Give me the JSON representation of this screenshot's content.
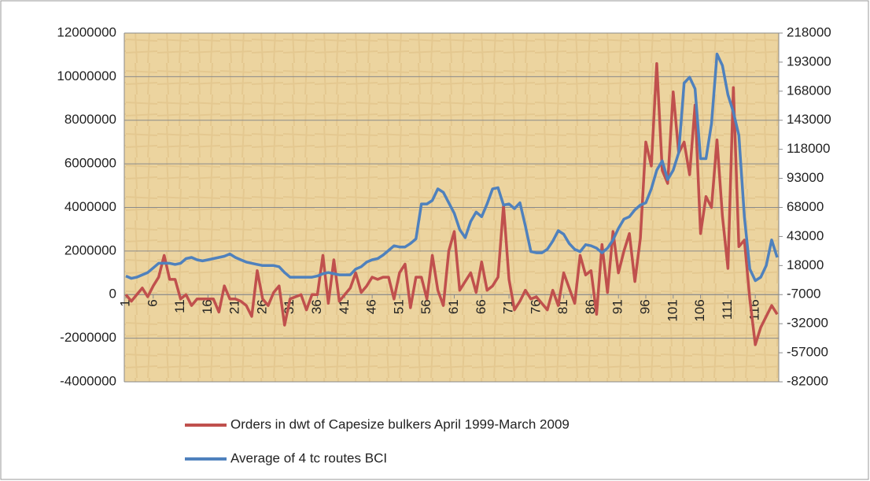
{
  "chart_data": {
    "type": "line",
    "categories": [
      1,
      null,
      null,
      null,
      null,
      6,
      null,
      null,
      null,
      null,
      11,
      null,
      null,
      null,
      null,
      16,
      null,
      null,
      null,
      null,
      21,
      null,
      null,
      null,
      null,
      26,
      null,
      null,
      null,
      null,
      31,
      null,
      null,
      null,
      null,
      36,
      null,
      null,
      null,
      null,
      41,
      null,
      null,
      null,
      null,
      46,
      null,
      null,
      null,
      null,
      51,
      null,
      null,
      null,
      null,
      56,
      null,
      null,
      null,
      null,
      61,
      null,
      null,
      null,
      null,
      66,
      null,
      null,
      null,
      null,
      71,
      null,
      null,
      null,
      null,
      76,
      null,
      null,
      null,
      null,
      81,
      null,
      null,
      null,
      null,
      86,
      null,
      null,
      null,
      null,
      91,
      null,
      null,
      null,
      null,
      96,
      null,
      null,
      null,
      null,
      101,
      null,
      null,
      null,
      null,
      106,
      null,
      null,
      null,
      null,
      111,
      null,
      null,
      null,
      null,
      116,
      null,
      null,
      null,
      null
    ],
    "series": [
      {
        "name": "Orders in dwt of Capesize bulkers April 1999-March 2009",
        "color": "#c0504d",
        "axis": "y",
        "values": [
          0,
          -300000,
          0,
          300000,
          -100000,
          400000,
          800000,
          1800000,
          700000,
          700000,
          -200000,
          0,
          -500000,
          -200000,
          -200000,
          -200000,
          -200000,
          -800000,
          400000,
          -200000,
          -200000,
          -300000,
          -500000,
          -1000000,
          1100000,
          -200000,
          -500000,
          100000,
          400000,
          -1400000,
          -200000,
          -100000,
          0,
          -700000,
          0,
          0,
          1800000,
          -400000,
          1600000,
          -300000,
          0,
          300000,
          1000000,
          100000,
          400000,
          800000,
          700000,
          800000,
          800000,
          -200000,
          1000000,
          1400000,
          -600000,
          800000,
          800000,
          -200000,
          1800000,
          200000,
          -500000,
          2000000,
          2900000,
          200000,
          600000,
          1000000,
          100000,
          1500000,
          200000,
          400000,
          800000,
          4100000,
          700000,
          -700000,
          -300000,
          200000,
          -200000,
          -100000,
          -400000,
          -700000,
          200000,
          -500000,
          1000000,
          300000,
          -400000,
          1800000,
          900000,
          1100000,
          -900000,
          2300000,
          100000,
          2900000,
          1000000,
          2000000,
          2800000,
          600000,
          2600000,
          7000000,
          5900000,
          10600000,
          5700000,
          5100000,
          9300000,
          6500000,
          7000000,
          5500000,
          8700000,
          2800000,
          4500000,
          4000000,
          7100000,
          3600000,
          1200000,
          9500000,
          2200000,
          2500000,
          -200000,
          -2300000,
          -1500000,
          -1000000,
          -500000,
          -900000
        ]
      },
      {
        "name": "Average of 4 tc routes BCI",
        "color": "#4f81bd",
        "axis": "y2",
        "values": [
          9000,
          7000,
          8000,
          10000,
          12000,
          16000,
          20000,
          20000,
          20000,
          19000,
          20000,
          24000,
          25000,
          23000,
          22000,
          23000,
          24000,
          25000,
          26000,
          28000,
          25000,
          23000,
          21000,
          20000,
          19000,
          18000,
          18000,
          18000,
          17000,
          12000,
          8000,
          8000,
          8000,
          8000,
          8000,
          9000,
          11000,
          12000,
          11000,
          10000,
          10000,
          10000,
          15000,
          17000,
          21000,
          23000,
          24000,
          27000,
          31000,
          35000,
          34000,
          34000,
          37000,
          41000,
          71000,
          71000,
          74000,
          84000,
          81000,
          72000,
          63000,
          49000,
          42000,
          56000,
          64000,
          60000,
          71000,
          84000,
          85000,
          70000,
          71000,
          67000,
          72000,
          52000,
          30000,
          29000,
          29000,
          32000,
          39000,
          48000,
          45000,
          37000,
          32000,
          30000,
          36000,
          35000,
          33000,
          29000,
          33000,
          40000,
          50000,
          58000,
          60000,
          66000,
          70000,
          72000,
          84000,
          100000,
          108000,
          92000,
          100000,
          115000,
          175000,
          180000,
          170000,
          110000,
          110000,
          140000,
          200000,
          190000,
          165000,
          150000,
          130000,
          60000,
          15000,
          5000,
          8000,
          18000,
          40000,
          25000
        ]
      }
    ],
    "ylim": [
      -4000000,
      12000000
    ],
    "yticks": [
      -4000000,
      -2000000,
      0,
      2000000,
      4000000,
      6000000,
      8000000,
      10000000,
      12000000
    ],
    "y2lim": [
      -82000,
      218000
    ],
    "y2ticks": [
      -82000,
      -57000,
      -32000,
      -7000,
      18000,
      43000,
      68000,
      93000,
      118000,
      143000,
      168000,
      193000,
      218000
    ],
    "grid": true
  }
}
